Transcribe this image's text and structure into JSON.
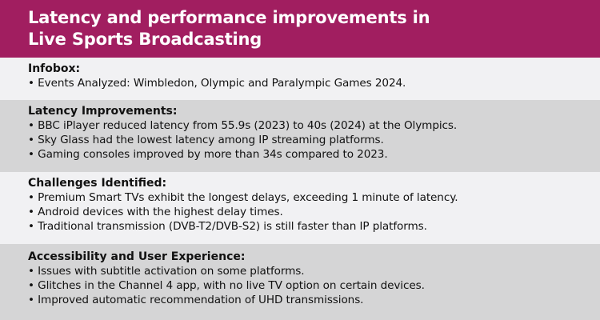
{
  "title_lines": [
    "Latency and performance improvements in",
    "Live Sports Broadcasting"
  ],
  "colors": {
    "header": "#a11e60",
    "light_band": "#f1f1f3",
    "gray_band": "#d5d5d6"
  },
  "sections": [
    {
      "heading": "Infobox:",
      "items": [
        "Events Analyzed: Wimbledon, Olympic and Paralympic Games 2024."
      ]
    },
    {
      "heading": "Latency Improvements:",
      "items": [
        "BBC iPlayer reduced latency from 55.9s (2023) to 40s (2024) at the Olympics.",
        "Sky Glass had the lowest latency among IP streaming platforms.",
        "Gaming consoles improved by more than 34s compared to 2023."
      ]
    },
    {
      "heading": "Challenges Identified:",
      "items": [
        "Premium Smart TVs exhibit the longest delays, exceeding 1 minute of latency.",
        "Android devices with the highest delay times.",
        "Traditional transmission (DVB-T2/DVB-S2) is still faster than IP platforms."
      ]
    },
    {
      "heading": "Accessibility and User Experience:",
      "items": [
        "Issues with subtitle activation on some platforms.",
        "Glitches in the Channel 4 app, with no live TV option on certain devices.",
        "Improved automatic recommendation of UHD transmissions."
      ]
    }
  ]
}
